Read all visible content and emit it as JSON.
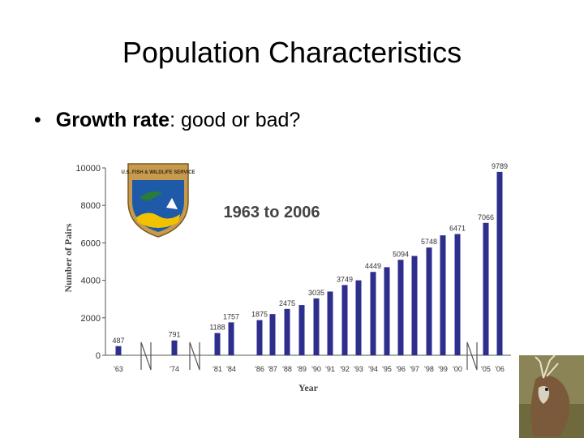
{
  "slide": {
    "title": "Population Characteristics",
    "bullet_bold": "Growth rate",
    "bullet_rest": ": good or bad?"
  },
  "chart_data": {
    "type": "bar",
    "title": "1963 to 2006",
    "ylabel": "Number of Pairs",
    "xlabel": "Year",
    "ylim": [
      0,
      10000
    ],
    "yticks": [
      0,
      2000,
      4000,
      6000,
      8000,
      10000
    ],
    "categories": [
      "'63",
      "'74",
      "'81",
      "'84",
      "'86",
      "'87",
      "'88",
      "'89",
      "'90",
      "'91",
      "'92",
      "'93",
      "'94",
      "'95",
      "'96",
      "'97",
      "'98",
      "'99",
      "'00",
      "'05",
      "'06"
    ],
    "values": [
      487,
      791,
      1188,
      1757,
      1875,
      2200,
      2475,
      2680,
      3035,
      3400,
      3749,
      4000,
      4449,
      4700,
      5094,
      5300,
      5748,
      6400,
      6471,
      7066,
      9789
    ],
    "value_labels": [
      "487",
      "791",
      "1188",
      "1757",
      "1875",
      "",
      "2475",
      "",
      "3035",
      "",
      "3749",
      "",
      "4449",
      "",
      "5094",
      "",
      "5748",
      "",
      "6471",
      "7066",
      "9789"
    ],
    "axis_breaks_after": [
      "'63",
      "'74",
      "'00"
    ],
    "bar_color": "#2e2e8c",
    "grid": false,
    "logo_text": "U.S. FISH & WILDLIFE SERVICE"
  }
}
